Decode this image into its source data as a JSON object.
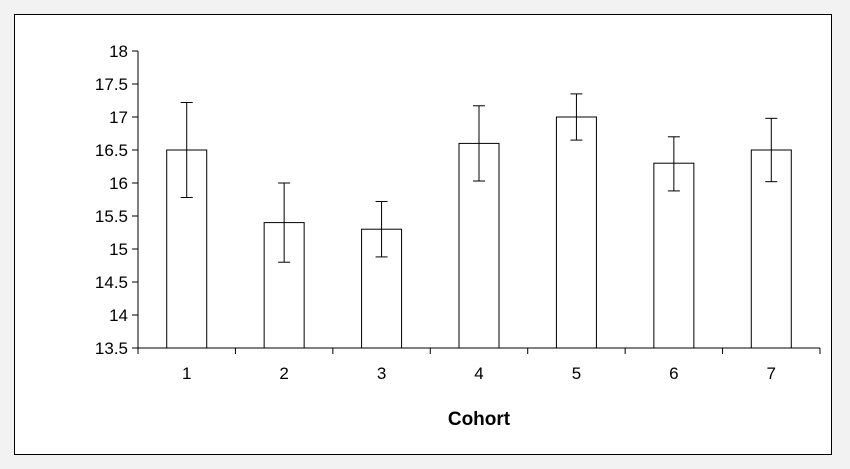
{
  "chart_data": {
    "type": "bar",
    "title": "",
    "xlabel": "Cohort",
    "ylabel": "",
    "categories": [
      "1",
      "2",
      "3",
      "4",
      "5",
      "6",
      "7"
    ],
    "values": [
      16.5,
      15.4,
      15.3,
      16.6,
      17.0,
      16.3,
      16.5
    ],
    "error_upper": [
      17.22,
      16.0,
      15.72,
      17.17,
      17.35,
      16.7,
      16.98
    ],
    "error_lower": [
      15.78,
      14.8,
      14.88,
      16.03,
      16.65,
      15.88,
      16.02
    ],
    "ylim": [
      13.5,
      18
    ],
    "yticks": [
      13.5,
      14,
      14.5,
      15,
      15.5,
      16,
      16.5,
      17,
      17.5,
      18
    ],
    "ytick_labels": [
      "13.5",
      "14",
      "14.5",
      "15",
      "15.5",
      "16",
      "16.5",
      "17",
      "17.5",
      "18"
    ],
    "grid": false,
    "legend": "none",
    "colors": {
      "bar_fill": "#ffffff",
      "bar_stroke": "#000000",
      "page_background": "#f2f2f2"
    }
  }
}
